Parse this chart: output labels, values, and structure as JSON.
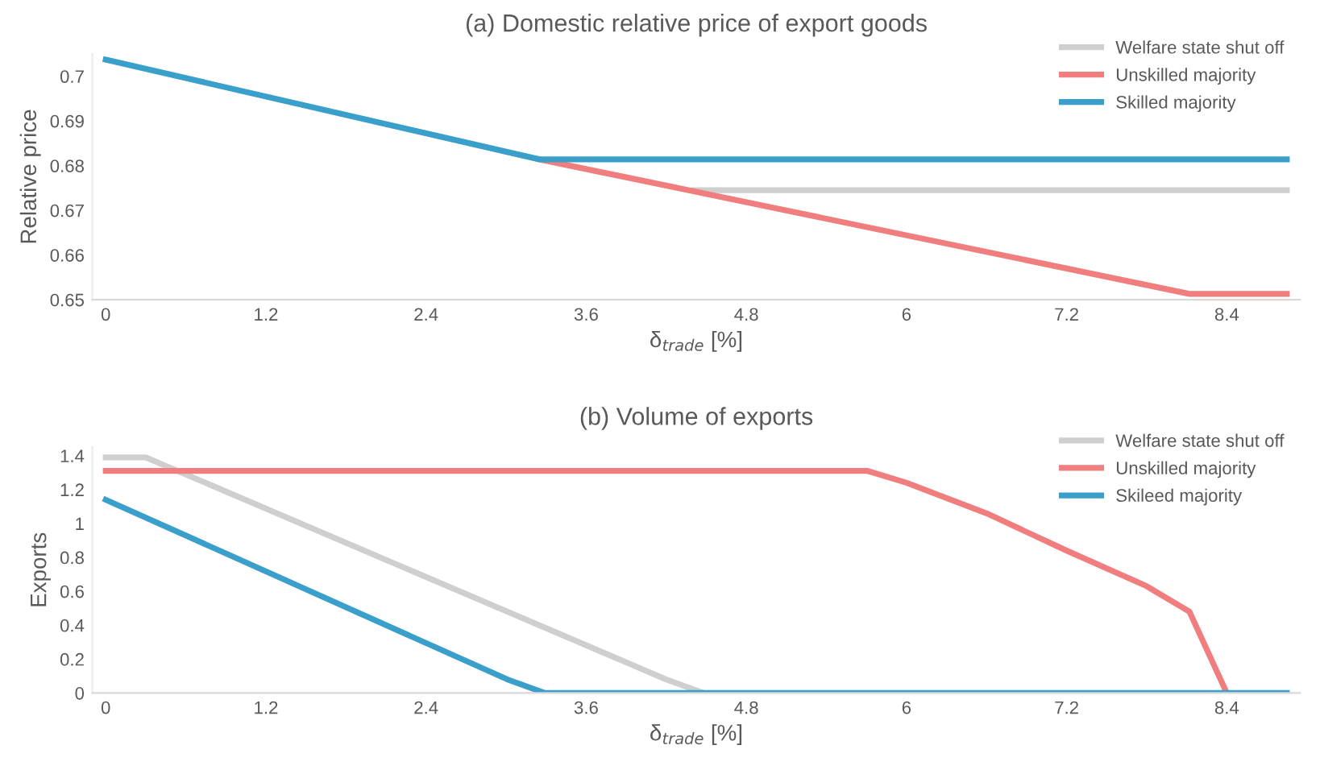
{
  "chart_data": [
    {
      "type": "line",
      "title": "(a) Domestic relative price of export goods",
      "xlabel": "δ$_{trade}$ [%]",
      "ylabel": "Relative price",
      "xlim": [
        -0.1,
        8.95
      ],
      "xticks": [
        0,
        1.2,
        2.4,
        3.6,
        4.8,
        6,
        7.2,
        8.4
      ],
      "ylim": [
        0.65,
        0.705
      ],
      "yticks": [
        0.65,
        0.66,
        0.67,
        0.68,
        0.69,
        0.7
      ],
      "grid": false,
      "legend": "top right",
      "marker": "none",
      "line_style": "solid",
      "series": [
        {
          "name": "Welfare state shut off",
          "color": "#cfcfcf",
          "x": [
            4.41,
            8.85
          ],
          "values": [
            0.6745,
            0.6745
          ]
        },
        {
          "name": "Unskilled majority",
          "color": "#f07e7e",
          "x": [
            3.25,
            8.12,
            8.85
          ],
          "values": [
            0.6814,
            0.6513,
            0.6513
          ]
        },
        {
          "name": "Skilled majority",
          "color": "#3a9fca",
          "x": [
            0,
            3.25,
            8.85
          ],
          "values": [
            0.7037,
            0.6814,
            0.6814
          ]
        }
      ]
    },
    {
      "type": "line",
      "title": "(b) Volume of exports",
      "xlabel": "δ$_{trade}$ [%]",
      "ylabel": "Exports",
      "xlim": [
        -0.1,
        8.95
      ],
      "xticks": [
        0,
        1.2,
        2.4,
        3.6,
        4.8,
        6,
        7.2,
        8.4
      ],
      "ylim": [
        0,
        1.45
      ],
      "yticks": [
        0,
        0.2,
        0.4,
        0.6,
        0.8,
        1,
        1.2,
        1.4
      ],
      "grid": false,
      "legend": "top right",
      "marker": "none",
      "line_style": "solid",
      "series": [
        {
          "name": "Welfare state shut off",
          "color": "#cfcfcf",
          "x": [
            0,
            0.3,
            4.2,
            4.48
          ],
          "values": [
            1.39,
            1.39,
            0.08,
            0
          ]
        },
        {
          "name": "Unskilled majority",
          "color": "#f07e7e",
          "x": [
            0,
            5.71,
            6.0,
            6.6,
            7.2,
            7.8,
            8.12,
            8.4
          ],
          "values": [
            1.31,
            1.31,
            1.24,
            1.06,
            0.84,
            0.63,
            0.48,
            0
          ]
        },
        {
          "name": "Skileed majority",
          "color": "#3a9fca",
          "x": [
            0,
            3.01,
            3.29,
            8.85
          ],
          "values": [
            1.14,
            0.08,
            0,
            0
          ]
        }
      ]
    }
  ]
}
